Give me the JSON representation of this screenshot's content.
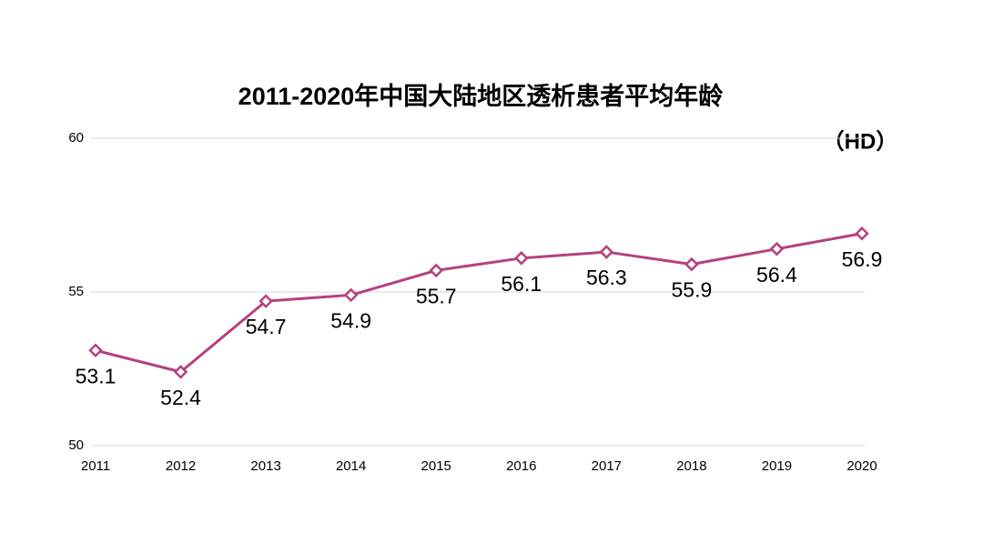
{
  "chart_data": {
    "type": "line",
    "title": "2011-2020年中国大陆地区透析患者平均年龄",
    "annotation": "（HD）",
    "categories": [
      "2011",
      "2012",
      "2013",
      "2014",
      "2015",
      "2016",
      "2017",
      "2018",
      "2019",
      "2020"
    ],
    "series": [
      {
        "name": "HD",
        "color": "#b5407f",
        "values": [
          53.1,
          52.4,
          54.7,
          54.9,
          55.7,
          56.1,
          56.3,
          55.9,
          56.4,
          56.9
        ]
      }
    ],
    "ylim": [
      50,
      60
    ],
    "yticks": [
      50,
      55,
      60
    ],
    "grid": true
  }
}
